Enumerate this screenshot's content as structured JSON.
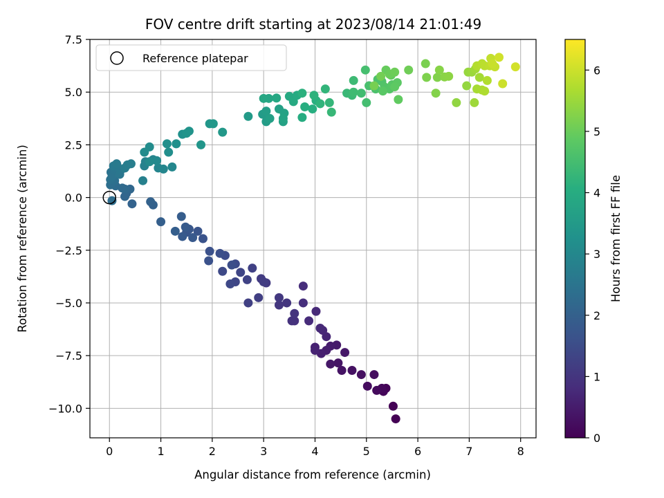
{
  "chart_data": {
    "type": "scatter",
    "title": "FOV centre drift starting at 2023/08/14 21:01:49",
    "xlabel": "Angular distance from reference (arcmin)",
    "ylabel": "Rotation from reference (arcmin)",
    "xlim": [
      -0.38,
      8.3
    ],
    "ylim": [
      -11.4,
      7.5
    ],
    "xticks": [
      0,
      1,
      2,
      3,
      4,
      5,
      6,
      7,
      8
    ],
    "xtick_labels": [
      "0",
      "1",
      "2",
      "3",
      "4",
      "5",
      "6",
      "7",
      "8"
    ],
    "yticks": [
      7.5,
      5.0,
      2.5,
      0.0,
      -2.5,
      -5.0,
      -7.5,
      -10.0
    ],
    "ytick_labels": [
      "7.5",
      "5.0",
      "2.5",
      "0.0",
      "−2.5",
      "−5.0",
      "−7.5",
      "−10.0"
    ],
    "grid": true,
    "legend": {
      "placement": "top-left",
      "entries": [
        "Reference platepar"
      ]
    },
    "reference_point": {
      "x": 0,
      "y": 0
    },
    "colorbar": {
      "label": "Hours from first FF file",
      "range": [
        0,
        6.5
      ],
      "ticks": [
        0,
        1,
        2,
        3,
        4,
        5,
        6
      ],
      "tick_labels": [
        "0",
        "1",
        "2",
        "3",
        "4",
        "5",
        "6"
      ],
      "colormap": "viridis"
    },
    "points": [
      [
        5.57,
        -10.5,
        0.0
      ],
      [
        5.52,
        -9.9,
        0.03
      ],
      [
        5.38,
        -9.05,
        0.06
      ],
      [
        5.33,
        -9.2,
        0.1
      ],
      [
        5.3,
        -9.05,
        0.13
      ],
      [
        5.2,
        -9.15,
        0.16
      ],
      [
        5.02,
        -8.95,
        0.2
      ],
      [
        5.15,
        -8.4,
        0.23
      ],
      [
        4.9,
        -8.4,
        0.26
      ],
      [
        4.72,
        -8.2,
        0.3
      ],
      [
        4.52,
        -8.2,
        0.33
      ],
      [
        4.45,
        -7.85,
        0.36
      ],
      [
        4.3,
        -7.9,
        0.4
      ],
      [
        4.58,
        -7.35,
        0.43
      ],
      [
        4.42,
        -7.0,
        0.46
      ],
      [
        4.3,
        -7.05,
        0.5
      ],
      [
        4.22,
        -7.25,
        0.53
      ],
      [
        4.12,
        -7.4,
        0.56
      ],
      [
        4.0,
        -7.1,
        0.6
      ],
      [
        4.0,
        -7.25,
        0.63
      ],
      [
        4.22,
        -6.6,
        0.66
      ],
      [
        4.15,
        -6.3,
        0.7
      ],
      [
        4.1,
        -6.2,
        0.73
      ],
      [
        4.02,
        -5.4,
        0.76
      ],
      [
        3.88,
        -5.85,
        0.8
      ],
      [
        3.77,
        -4.2,
        0.83
      ],
      [
        3.77,
        -5.0,
        0.86
      ],
      [
        3.6,
        -5.85,
        0.9
      ],
      [
        3.55,
        -5.85,
        0.93
      ],
      [
        3.6,
        -5.5,
        0.96
      ],
      [
        3.45,
        -5.0,
        1.0
      ],
      [
        3.3,
        -5.1,
        1.03
      ],
      [
        3.3,
        -4.75,
        1.06
      ],
      [
        3.05,
        -4.05,
        1.1
      ],
      [
        2.95,
        -3.85,
        1.13
      ],
      [
        3.0,
        -4.0,
        1.16
      ],
      [
        2.9,
        -4.75,
        1.2
      ],
      [
        2.7,
        -5.0,
        1.23
      ],
      [
        2.78,
        -3.35,
        1.26
      ],
      [
        2.68,
        -3.9,
        1.3
      ],
      [
        2.55,
        -3.55,
        1.33
      ],
      [
        2.45,
        -4.0,
        1.36
      ],
      [
        2.35,
        -4.1,
        1.4
      ],
      [
        2.2,
        -3.5,
        1.43
      ],
      [
        2.45,
        -3.15,
        1.46
      ],
      [
        2.25,
        -2.75,
        1.5
      ],
      [
        2.38,
        -3.2,
        1.53
      ],
      [
        2.15,
        -2.65,
        1.56
      ],
      [
        1.95,
        -2.55,
        1.6
      ],
      [
        1.93,
        -3.0,
        1.63
      ],
      [
        1.82,
        -1.95,
        1.66
      ],
      [
        1.72,
        -1.6,
        1.7
      ],
      [
        1.5,
        -1.65,
        1.73
      ],
      [
        1.55,
        -1.5,
        1.76
      ],
      [
        1.62,
        -1.9,
        1.8
      ],
      [
        1.42,
        -1.85,
        1.83
      ],
      [
        1.48,
        -1.4,
        1.86
      ],
      [
        1.4,
        -0.9,
        1.9
      ],
      [
        1.28,
        -1.6,
        1.93
      ],
      [
        1.0,
        -1.15,
        1.96
      ],
      [
        0.85,
        -0.35,
        2.0
      ],
      [
        0.8,
        -0.2,
        2.03
      ],
      [
        0.44,
        -0.3,
        2.06
      ],
      [
        0.33,
        0.2,
        2.1
      ],
      [
        0.3,
        0.05,
        2.13
      ],
      [
        0.4,
        0.4,
        2.16
      ],
      [
        0.3,
        0.4,
        2.2
      ],
      [
        0.25,
        0.45,
        2.23
      ],
      [
        0.12,
        0.55,
        2.26
      ],
      [
        0.05,
        -0.15,
        2.3
      ],
      [
        0.02,
        0.6,
        2.33
      ],
      [
        0.1,
        0.8,
        2.36
      ],
      [
        0.02,
        0.85,
        2.4
      ],
      [
        0.03,
        1.2,
        2.43
      ],
      [
        0.05,
        1.0,
        2.46
      ],
      [
        0.1,
        1.3,
        2.5
      ],
      [
        0.2,
        1.1,
        2.53
      ],
      [
        0.22,
        1.3,
        2.56
      ],
      [
        0.15,
        1.5,
        2.6
      ],
      [
        0.08,
        1.5,
        2.63
      ],
      [
        0.14,
        1.6,
        2.66
      ],
      [
        0.3,
        1.4,
        2.7
      ],
      [
        0.35,
        1.55,
        2.73
      ],
      [
        0.42,
        1.6,
        2.76
      ],
      [
        0.65,
        0.8,
        2.8
      ],
      [
        0.68,
        1.5,
        2.83
      ],
      [
        0.7,
        1.7,
        2.86
      ],
      [
        0.85,
        1.8,
        2.9
      ],
      [
        0.95,
        1.4,
        2.93
      ],
      [
        1.05,
        1.35,
        2.96
      ],
      [
        1.22,
        1.45,
        3.0
      ],
      [
        0.92,
        1.75,
        3.03
      ],
      [
        0.78,
        1.7,
        3.06
      ],
      [
        0.68,
        2.15,
        3.1
      ],
      [
        0.78,
        2.4,
        3.13
      ],
      [
        1.15,
        2.15,
        3.16
      ],
      [
        1.12,
        2.55,
        3.2
      ],
      [
        1.3,
        2.55,
        3.23
      ],
      [
        1.42,
        3.0,
        3.26
      ],
      [
        1.55,
        3.15,
        3.3
      ],
      [
        1.5,
        3.05,
        3.33
      ],
      [
        1.78,
        2.5,
        3.36
      ],
      [
        1.95,
        3.5,
        3.4
      ],
      [
        2.02,
        3.5,
        3.43
      ],
      [
        2.2,
        3.1,
        3.46
      ],
      [
        2.7,
        3.85,
        3.5
      ],
      [
        2.98,
        3.95,
        3.53
      ],
      [
        3.05,
        3.6,
        3.56
      ],
      [
        3.05,
        4.1,
        3.6
      ],
      [
        3.12,
        3.75,
        3.63
      ],
      [
        3.3,
        4.2,
        3.66
      ],
      [
        3.38,
        3.6,
        3.7
      ],
      [
        3.4,
        4.0,
        3.73
      ],
      [
        3.38,
        3.75,
        3.76
      ],
      [
        3.1,
        4.7,
        3.8
      ],
      [
        3.0,
        4.7,
        3.83
      ],
      [
        3.25,
        4.72,
        3.86
      ],
      [
        3.5,
        4.8,
        3.9
      ],
      [
        3.58,
        4.55,
        3.93
      ],
      [
        3.65,
        4.85,
        3.96
      ],
      [
        3.75,
        3.8,
        4.0
      ],
      [
        3.8,
        4.3,
        4.03
      ],
      [
        3.95,
        4.2,
        4.06
      ],
      [
        4.02,
        4.6,
        4.1
      ],
      [
        3.75,
        4.95,
        4.13
      ],
      [
        3.98,
        4.85,
        4.16
      ],
      [
        4.1,
        4.45,
        4.2
      ],
      [
        4.2,
        5.15,
        4.23
      ],
      [
        4.28,
        4.5,
        4.26
      ],
      [
        4.32,
        4.05,
        4.3
      ],
      [
        4.62,
        4.95,
        4.33
      ],
      [
        4.72,
        4.85,
        4.36
      ],
      [
        4.75,
        5.55,
        4.4
      ],
      [
        4.75,
        5.0,
        4.43
      ],
      [
        4.9,
        4.95,
        4.46
      ],
      [
        5.0,
        4.5,
        4.5
      ],
      [
        4.98,
        6.05,
        4.53
      ],
      [
        5.05,
        5.3,
        4.56
      ],
      [
        5.18,
        5.15,
        4.6
      ],
      [
        5.22,
        5.6,
        4.63
      ],
      [
        5.3,
        5.5,
        4.66
      ],
      [
        5.35,
        5.25,
        4.7
      ],
      [
        5.45,
        5.15,
        4.73
      ],
      [
        5.5,
        5.35,
        4.76
      ],
      [
        5.32,
        5.05,
        4.8
      ],
      [
        5.6,
        5.45,
        4.83
      ],
      [
        5.55,
        5.25,
        4.86
      ],
      [
        5.62,
        4.65,
        4.9
      ],
      [
        5.48,
        5.8,
        4.93
      ],
      [
        5.38,
        6.05,
        4.96
      ],
      [
        5.45,
        5.85,
        5.0
      ],
      [
        5.55,
        5.95,
        5.03
      ],
      [
        5.82,
        6.05,
        5.06
      ],
      [
        5.28,
        5.75,
        5.1
      ],
      [
        5.15,
        5.3,
        5.13
      ],
      [
        6.15,
        6.35,
        5.16
      ],
      [
        6.17,
        5.7,
        5.2
      ],
      [
        6.38,
        5.7,
        5.23
      ],
      [
        6.35,
        4.95,
        5.26
      ],
      [
        6.42,
        6.05,
        5.3
      ],
      [
        6.52,
        5.72,
        5.33
      ],
      [
        6.6,
        5.75,
        5.36
      ],
      [
        6.75,
        4.5,
        5.4
      ],
      [
        6.95,
        5.3,
        5.43
      ],
      [
        6.98,
        5.95,
        5.46
      ],
      [
        7.05,
        5.95,
        5.5
      ],
      [
        7.1,
        4.5,
        5.53
      ],
      [
        7.12,
        6.1,
        5.56
      ],
      [
        7.2,
        5.7,
        5.6
      ],
      [
        7.15,
        5.15,
        5.63
      ],
      [
        7.25,
        5.1,
        5.66
      ],
      [
        7.3,
        5.05,
        5.7
      ],
      [
        7.35,
        5.55,
        5.73
      ],
      [
        7.15,
        6.25,
        5.76
      ],
      [
        7.25,
        6.35,
        5.8
      ],
      [
        7.3,
        6.25,
        5.83
      ],
      [
        7.4,
        6.25,
        5.86
      ],
      [
        7.42,
        6.6,
        5.9
      ],
      [
        7.5,
        6.2,
        5.93
      ],
      [
        7.45,
        6.35,
        5.96
      ],
      [
        7.65,
        5.4,
        6.0
      ],
      [
        7.58,
        6.65,
        6.03
      ],
      [
        7.9,
        6.2,
        6.06
      ]
    ]
  }
}
